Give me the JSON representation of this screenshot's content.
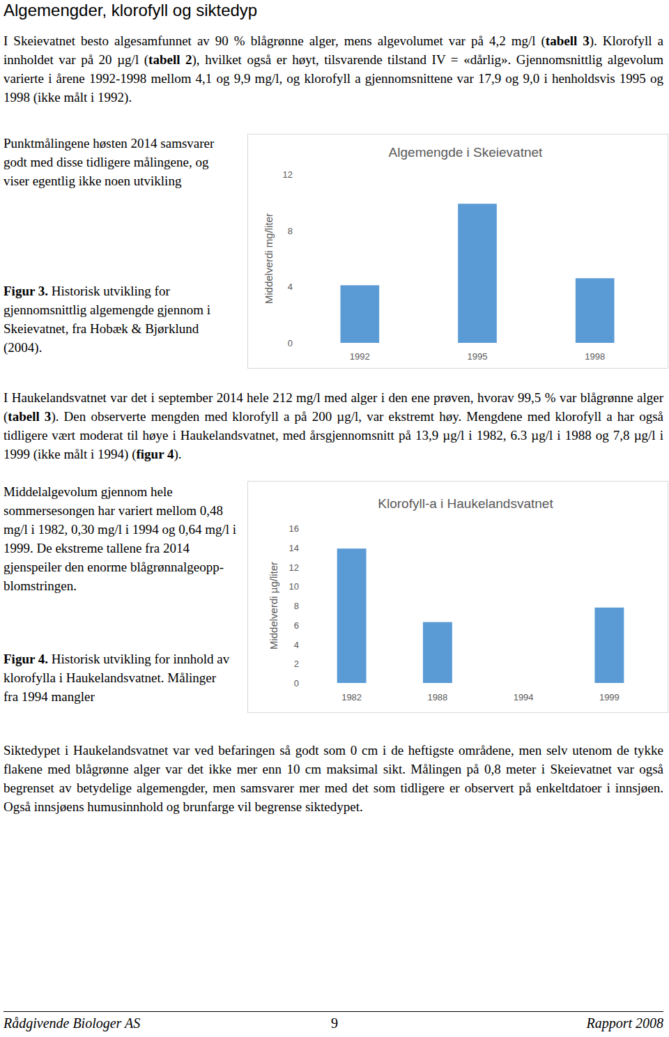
{
  "heading": "Algemengder, klorofyll og siktedyp",
  "intro": [
    "I Skeievatnet besto algesamfunnet av 90 % blågrønne alger, mens algevolumet var på 4,2 mg/l (",
    {
      "bold": "tabell 3"
    },
    "). Klorofyll a innholdet var på 20 µg/l (",
    {
      "bold": "tabell 2"
    },
    "), hvilket også er høyt, tilsvarende tilstand IV = «dårlig». Gjennomsnittlig algevolum varierte i årene 1992-1998 mellom 4,1 og 9,9 mg/l, og klorofyll a gjennomsnittene var 17,9 og 9,0 i henholdsvis 1995 og 1998 (ikke målt i 1992)."
  ],
  "side_note_1": "Punktmålingene høsten 2014 samsvarer godt med disse tidligere målingene, og viser egentlig ikke noen utvikling",
  "caption_1": {
    "label": "Figur 3.",
    "text": " Historisk utvikling for gjennomsnittlig algemengde gjennom i Skeievatnet, fra Hobæk & Bjørklund (2004)."
  },
  "paragraph_2": [
    "I Haukelandsvatnet var det i september 2014 hele 212 mg/l med alger i den ene prøven, hvorav 99,5 % var blågrønne alger (",
    {
      "bold": "tabell 3"
    },
    "). Den observerte mengden med klorofyll a på 200 µg/l, var ekstremt høy. Mengdene med klorofyll a har også tidligere vært moderat til høye i Haukelandsvatnet, med årsgjennomsnitt på 13,9 µg/l i 1982, 6.3 µg/l i 1988 og 7,8 µg/l i 1999 (ikke målt i 1994) (",
    {
      "bold": "figur 4"
    },
    ")."
  ],
  "side_note_2": "Middelalgevolum gjennom hele sommersesongen har variert mellom 0,48 mg/l i 1982, 0,30 mg/l i 1994 og 0,64 mg/l i 1999. De ekstreme tallene fra 2014 gjenspeiler den enorme blågrønnalgeopp-blomstringen.",
  "caption_2": {
    "label": "Figur 4.",
    "text": " Historisk utvikling for innhold av klorofylla i Haukelandsvatnet. Målinger fra 1994 mangler"
  },
  "paragraph_3": "Siktedypet i Haukelandsvatnet var ved befaringen så godt som 0 cm i de heftigste områdene, men selv utenom de tykke flakene med blågrønne alger var det ikke mer enn 10 cm maksimal sikt. Målingen på 0,8 meter i Skeievatnet var også begrenset av betydelige algemengder, men samsvarer mer med det som tidligere er observert på enkeltdatoer i innsjøen. Også innsjøens humusinnhold og brunfarge vil begrense siktedypet.",
  "footer": {
    "left": "Rådgivende Biologer AS",
    "page": "9",
    "right": "Rapport 2008"
  },
  "chart_data": [
    {
      "type": "bar",
      "title": "Algemengde i Skeievatnet",
      "ylabel": "Middelverdi mg/liter",
      "categories": [
        "1992",
        "1995",
        "1998"
      ],
      "values": [
        4.1,
        9.9,
        4.6
      ],
      "color": "#5b9bd5",
      "ylim": [
        0,
        12
      ],
      "yticks": [
        0,
        4,
        8,
        12
      ],
      "grid": false
    },
    {
      "type": "bar",
      "title": "Klorofyll-a i Haukelandsvatnet",
      "ylabel": "Middelverdi µg/liter",
      "categories": [
        "1982",
        "1988",
        "1994",
        "1999"
      ],
      "values": [
        13.9,
        6.3,
        null,
        7.8
      ],
      "color": "#5b9bd5",
      "ylim": [
        0,
        16
      ],
      "yticks": [
        0,
        2,
        4,
        6,
        8,
        10,
        12,
        14,
        16
      ],
      "grid": false
    }
  ]
}
